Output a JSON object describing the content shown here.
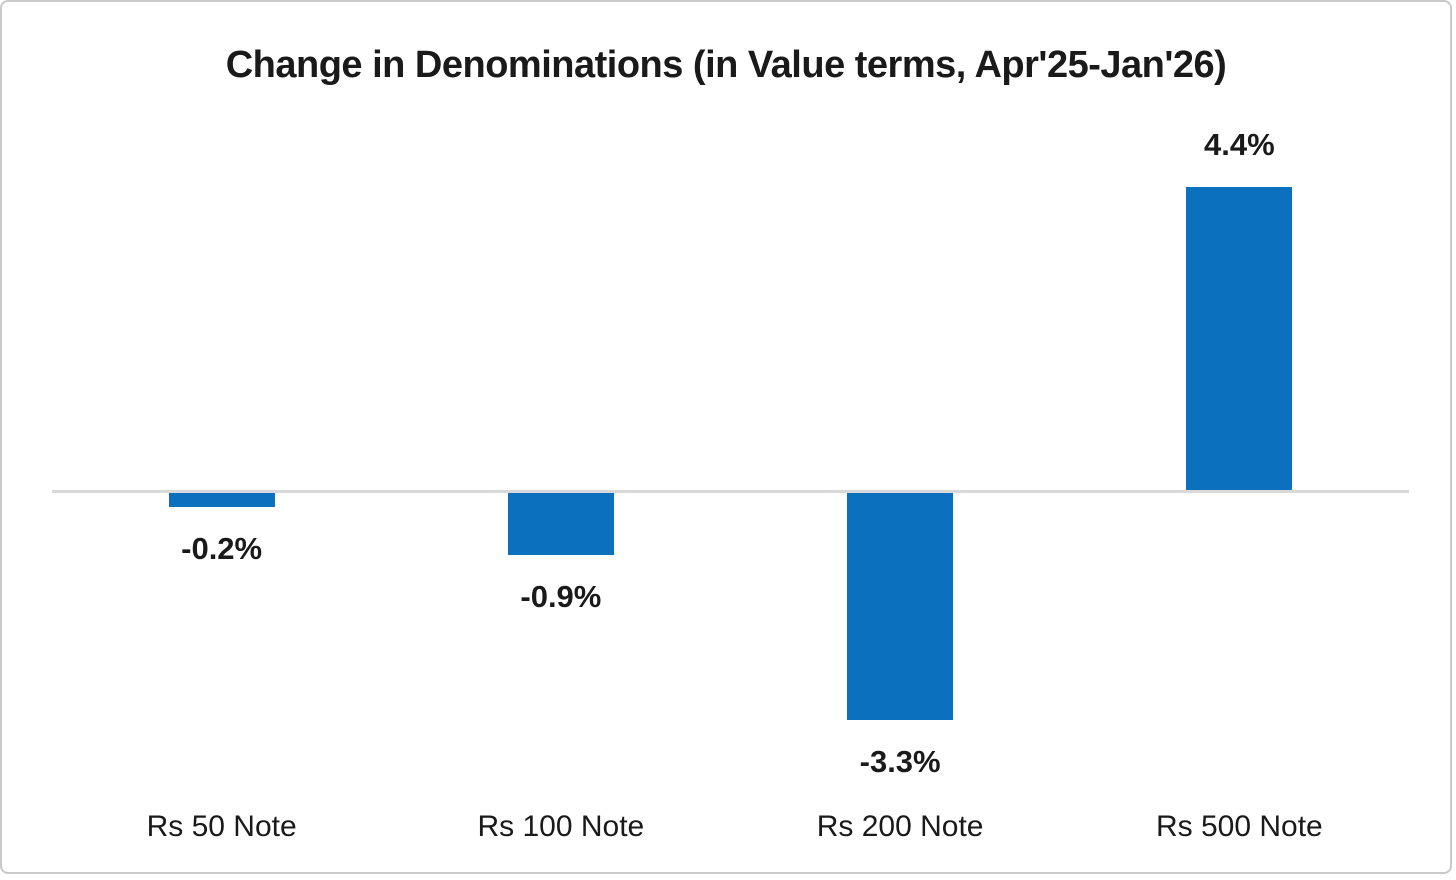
{
  "chart_data": {
    "type": "bar",
    "title": "Change in Denominations (in Value terms, Apr'25-Jan'26)",
    "categories": [
      "Rs 50 Note",
      "Rs 100 Note",
      "Rs 200 Note",
      "Rs 500 Note"
    ],
    "values": [
      -0.2,
      -0.9,
      -3.3,
      4.4
    ],
    "value_labels": [
      "-0.2%",
      "-0.9%",
      "-3.3%",
      "4.4%"
    ],
    "xlabel": "",
    "ylabel": "",
    "ylim": [
      -4.4,
      4.4
    ],
    "grid": false,
    "legend": false,
    "y_axis_visible": false,
    "bar_color": "#0b71bf",
    "baseline_color": "#d9d9d9",
    "text_color": "#1a1a1a",
    "frame_border_color": "#c9c9c9"
  }
}
